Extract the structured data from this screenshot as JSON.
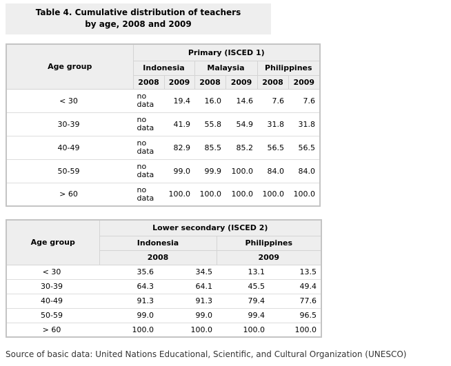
{
  "title_lines": [
    "Table 4. Cumulative distribution of teachers",
    "by age, 2008 and 2009"
  ],
  "table1": {
    "age_header": "Age group",
    "group_header": "Primary (ISCED 1)",
    "countries": [
      "Indonesia",
      "Malaysia",
      "Philippines"
    ],
    "years": [
      "2008",
      "2009",
      "2008",
      "2009",
      "2008",
      "2009"
    ],
    "rows": [
      [
        "< 30",
        "no data",
        "19.4",
        "16.0",
        "14.6",
        "7.6",
        "7.6"
      ],
      [
        "30-39",
        "no data",
        "41.9",
        "55.8",
        "54.9",
        "31.8",
        "31.8"
      ],
      [
        "40-49",
        "no data",
        "82.9",
        "85.5",
        "85.2",
        "56.5",
        "56.5"
      ],
      [
        "50-59",
        "no data",
        "99.0",
        "99.9",
        "100.0",
        "84.0",
        "84.0"
      ],
      [
        "> 60",
        "no data",
        "100.0",
        "100.0",
        "100.0",
        "100.0",
        "100.0"
      ]
    ]
  },
  "table2": {
    "age_header": "Age group",
    "group_header": "Lower secondary (ISCED 2)",
    "countries": [
      "Indonesia",
      "Philippines"
    ],
    "years": [
      "2008",
      "2009"
    ],
    "rows": [
      [
        "< 30",
        "35.6",
        "34.5",
        "13.1",
        "13.5"
      ],
      [
        "30-39",
        "64.3",
        "64.1",
        "45.5",
        "49.4"
      ],
      [
        "40-49",
        "91.3",
        "91.3",
        "79.4",
        "77.6"
      ],
      [
        "50-59",
        "99.0",
        "99.0",
        "99.4",
        "96.5"
      ],
      [
        "> 60",
        "100.0",
        "100.0",
        "100.0",
        "100.0"
      ]
    ]
  },
  "source": "Source of basic data: United Nations Educational, Scientific, and Cultural Organization (UNESCO)"
}
